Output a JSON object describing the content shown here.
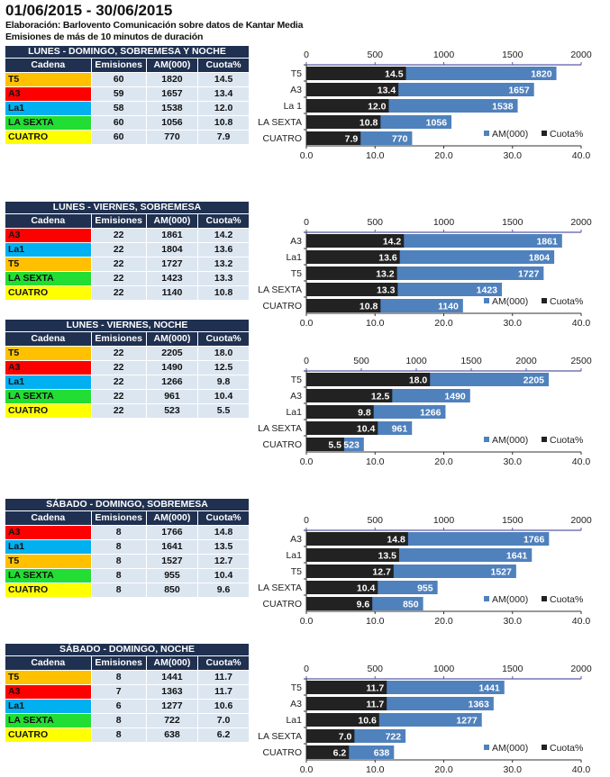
{
  "header": {
    "title": "01/06/2015 - 30/06/2015",
    "source": "Elaboración: Barlovento Comunicación sobre datos de Kantar Media",
    "note": "Emisiones de más de 10 minutos de duración"
  },
  "columns": [
    "Cadena",
    "Emisiones",
    "AM(000)",
    "Cuota%"
  ],
  "channel_colors": {
    "T5": "#ffc000",
    "A3": "#ff0000",
    "La1": "#00b0f0",
    "LA SEXTA": "#22dd33",
    "CUATRO": "#ffff00"
  },
  "legend": {
    "am": "AM(000)",
    "cuota": "Cuota%"
  },
  "series_colors": {
    "am": "#4f81bd",
    "cuota": "#222222"
  },
  "sections": [
    {
      "title": "LUNES - DOMINGO, SOBREMESA Y NOCHE",
      "rows": [
        [
          "T5",
          60,
          1820,
          "14.5"
        ],
        [
          "A3",
          59,
          1657,
          "13.4"
        ],
        [
          "La1",
          58,
          1538,
          "12.0"
        ],
        [
          "LA SEXTA",
          60,
          1056,
          "10.8"
        ],
        [
          "CUATRO",
          60,
          770,
          "7.9"
        ]
      ],
      "chart_data": {
        "type": "bar",
        "orientation": "horizontal",
        "categories": [
          "T5",
          "A3",
          "La 1",
          "LA SEXTA",
          "CUATRO"
        ],
        "series": [
          {
            "name": "AM(000)",
            "values": [
              1820,
              1657,
              1538,
              1056,
              770
            ]
          },
          {
            "name": "Cuota%",
            "values": [
              14.5,
              13.4,
              12.0,
              10.8,
              7.9
            ]
          }
        ],
        "am_axis": {
          "range": [
            0,
            2000
          ],
          "ticks": [
            "0",
            "500",
            "1000",
            "1500",
            "2000"
          ]
        },
        "cuota_axis": {
          "range": [
            0,
            40
          ],
          "ticks": [
            "0.0",
            "10.0",
            "20.0",
            "30.0",
            "40.0"
          ]
        },
        "legend": "bottom-right"
      }
    },
    {
      "title": "LUNES - VIERNES, SOBREMESA",
      "rows": [
        [
          "A3",
          22,
          1861,
          "14.2"
        ],
        [
          "La1",
          22,
          1804,
          "13.6"
        ],
        [
          "T5",
          22,
          1727,
          "13.2"
        ],
        [
          "LA SEXTA",
          22,
          1423,
          "13.3"
        ],
        [
          "CUATRO",
          22,
          1140,
          "10.8"
        ]
      ],
      "chart_data": {
        "type": "bar",
        "orientation": "horizontal",
        "categories": [
          "A3",
          "La1",
          "T5",
          "LA SEXTA",
          "CUATRO"
        ],
        "series": [
          {
            "name": "AM(000)",
            "values": [
              1861,
              1804,
              1727,
              1423,
              1140
            ]
          },
          {
            "name": "Cuota%",
            "values": [
              14.2,
              13.6,
              13.2,
              13.3,
              10.8
            ]
          }
        ],
        "am_axis": {
          "range": [
            0,
            2000
          ],
          "ticks": [
            "0",
            "500",
            "1000",
            "1500",
            "2000"
          ]
        },
        "cuota_axis": {
          "range": [
            0,
            40
          ],
          "ticks": [
            "0.0",
            "10.0",
            "20.0",
            "30.0",
            "40.0"
          ]
        },
        "legend": "bottom-right"
      }
    },
    {
      "title": "LUNES - VIERNES, NOCHE",
      "rows": [
        [
          "T5",
          22,
          2205,
          "18.0"
        ],
        [
          "A3",
          22,
          1490,
          "12.5"
        ],
        [
          "La1",
          22,
          1266,
          "9.8"
        ],
        [
          "LA SEXTA",
          22,
          961,
          "10.4"
        ],
        [
          "CUATRO",
          22,
          523,
          "5.5"
        ]
      ],
      "chart_data": {
        "type": "bar",
        "orientation": "horizontal",
        "categories": [
          "T5",
          "A3",
          "La1",
          "LA SEXTA",
          "CUATRO"
        ],
        "series": [
          {
            "name": "AM(000)",
            "values": [
              2205,
              1490,
              1266,
              961,
              523
            ]
          },
          {
            "name": "Cuota%",
            "values": [
              18.0,
              12.5,
              9.8,
              10.4,
              5.5
            ]
          }
        ],
        "am_axis": {
          "range": [
            0,
            2500
          ],
          "ticks": [
            "0",
            "500",
            "1000",
            "1500",
            "2000",
            "2500"
          ]
        },
        "cuota_axis": {
          "range": [
            0,
            40
          ],
          "ticks": [
            "0.0",
            "10.0",
            "20.0",
            "30.0",
            "40.0"
          ]
        },
        "legend": "bottom-right"
      }
    },
    {
      "title": "SÁBADO - DOMINGO, SOBREMESA",
      "rows": [
        [
          "A3",
          8,
          1766,
          "14.8"
        ],
        [
          "La1",
          8,
          1641,
          "13.5"
        ],
        [
          "T5",
          8,
          1527,
          "12.7"
        ],
        [
          "LA SEXTA",
          8,
          955,
          "10.4"
        ],
        [
          "CUATRO",
          8,
          850,
          "9.6"
        ]
      ],
      "chart_data": {
        "type": "bar",
        "orientation": "horizontal",
        "categories": [
          "A3",
          "La1",
          "T5",
          "LA SEXTA",
          "CUATRO"
        ],
        "series": [
          {
            "name": "AM(000)",
            "values": [
              1766,
              1641,
              1527,
              955,
              850
            ]
          },
          {
            "name": "Cuota%",
            "values": [
              14.8,
              13.5,
              12.7,
              10.4,
              9.6
            ]
          }
        ],
        "am_axis": {
          "range": [
            0,
            2000
          ],
          "ticks": [
            "0",
            "500",
            "1000",
            "1500",
            "2000"
          ]
        },
        "cuota_axis": {
          "range": [
            0,
            40
          ],
          "ticks": [
            "0.0",
            "10.0",
            "20.0",
            "30.0",
            "40.0"
          ]
        },
        "legend": "bottom-right"
      }
    },
    {
      "title": "SÁBADO - DOMINGO, NOCHE",
      "rows": [
        [
          "T5",
          8,
          1441,
          "11.7"
        ],
        [
          "A3",
          7,
          1363,
          "11.7"
        ],
        [
          "La1",
          6,
          1277,
          "10.6"
        ],
        [
          "LA SEXTA",
          8,
          722,
          "7.0"
        ],
        [
          "CUATRO",
          8,
          638,
          "6.2"
        ]
      ],
      "chart_data": {
        "type": "bar",
        "orientation": "horizontal",
        "categories": [
          "T5",
          "A3",
          "La1",
          "LA SEXTA",
          "CUATRO"
        ],
        "series": [
          {
            "name": "AM(000)",
            "values": [
              1441,
              1363,
              1277,
              722,
              638
            ]
          },
          {
            "name": "Cuota%",
            "values": [
              11.7,
              11.7,
              10.6,
              7.0,
              6.2
            ]
          }
        ],
        "am_axis": {
          "range": [
            0,
            2000
          ],
          "ticks": [
            "0",
            "500",
            "1000",
            "1500",
            "2000"
          ]
        },
        "cuota_axis": {
          "range": [
            0,
            40
          ],
          "ticks": [
            "0.0",
            "10.0",
            "20.0",
            "30.0",
            "40.0"
          ]
        },
        "legend": "bottom-right"
      }
    }
  ]
}
